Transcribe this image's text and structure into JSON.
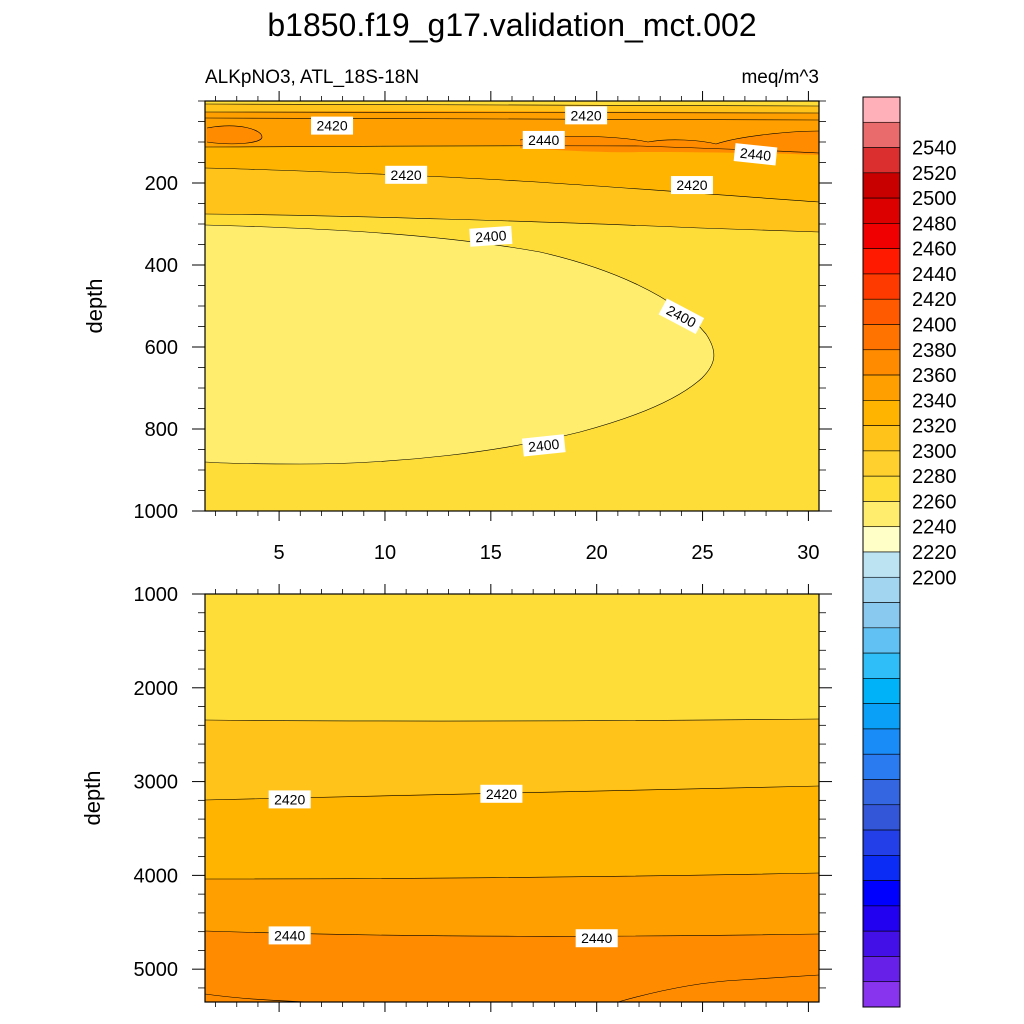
{
  "title": "b1850.f19_g17.validation_mct.002",
  "chart_data": [
    {
      "type": "contour",
      "panel": "upper",
      "left_label": "ALKpNO3, ATL_18S-18N",
      "right_label": "meq/m^3",
      "xlabel": "",
      "ylabel": "depth",
      "xlim": [
        1.5,
        30.5
      ],
      "ylim": [
        1000,
        0
      ],
      "xticks": [
        5,
        10,
        15,
        20,
        25,
        30
      ],
      "yticks": [
        200,
        400,
        600,
        800,
        1000
      ],
      "contour_labels": [
        {
          "text": "2420",
          "x": 7.5,
          "y": 60
        },
        {
          "text": "2420",
          "x": 19.5,
          "y": 35
        },
        {
          "text": "2440",
          "x": 17.5,
          "y": 95
        },
        {
          "text": "2440",
          "x": 27.5,
          "y": 130
        },
        {
          "text": "2420",
          "x": 11.0,
          "y": 180
        },
        {
          "text": "2420",
          "x": 24.5,
          "y": 205
        },
        {
          "text": "2400",
          "x": 15.0,
          "y": 330
        },
        {
          "text": "2400",
          "x": 24.0,
          "y": 525
        },
        {
          "text": "2400",
          "x": 17.5,
          "y": 840
        }
      ]
    },
    {
      "type": "contour",
      "panel": "lower",
      "xlabel": "",
      "ylabel": "depth",
      "xlim": [
        1.5,
        30.5
      ],
      "ylim": [
        5350,
        1000
      ],
      "xticks": [
        5,
        10,
        15,
        20,
        25,
        30
      ],
      "yticks": [
        1000,
        2000,
        3000,
        4000,
        5000
      ],
      "contour_labels": [
        {
          "text": "2420",
          "x": 5.5,
          "y": 3190
        },
        {
          "text": "2420",
          "x": 15.5,
          "y": 3130
        },
        {
          "text": "2440",
          "x": 5.5,
          "y": 4640
        },
        {
          "text": "2440",
          "x": 20.0,
          "y": 4670
        }
      ]
    }
  ],
  "colorbar": {
    "labels": [
      "2540",
      "2520",
      "2500",
      "2480",
      "2460",
      "2440",
      "2420",
      "2400",
      "2380",
      "2360",
      "2340",
      "2320",
      "2300",
      "2280",
      "2260",
      "2240",
      "2220",
      "2200"
    ],
    "colors_top_to_bottom": [
      "#ffb0b8",
      "#ea6b6b",
      "#db2e2e",
      "#c80000",
      "#dc0000",
      "#f00000",
      "#ff1a00",
      "#ff3a00",
      "#ff5a00",
      "#ff7300",
      "#ff8c00",
      "#ffa000",
      "#ffb400",
      "#ffc31a",
      "#ffd02e",
      "#ffdd38",
      "#ffee6e",
      "#ffffc8",
      "#bbe3f2",
      "#a2d6f0",
      "#89c9ef",
      "#61c1f2",
      "#2fbef7",
      "#00b2f7",
      "#0aa0f7",
      "#1a8cf7",
      "#2b7bf0",
      "#3366e0",
      "#3355d8",
      "#2340e8",
      "#0a2cf5",
      "#0000ff",
      "#2200f0",
      "#4410e8",
      "#6620e8",
      "#8833ee"
    ]
  },
  "fill_colors": {
    "deep_orange": "#ff8c00",
    "orange": "#ffa000",
    "amber": "#ffb400",
    "gold": "#ffc31a",
    "yellow_gold": "#ffd02e",
    "yellow": "#ffdd38",
    "light_yellow": "#ffee6e",
    "pale": "#ffffc8"
  }
}
